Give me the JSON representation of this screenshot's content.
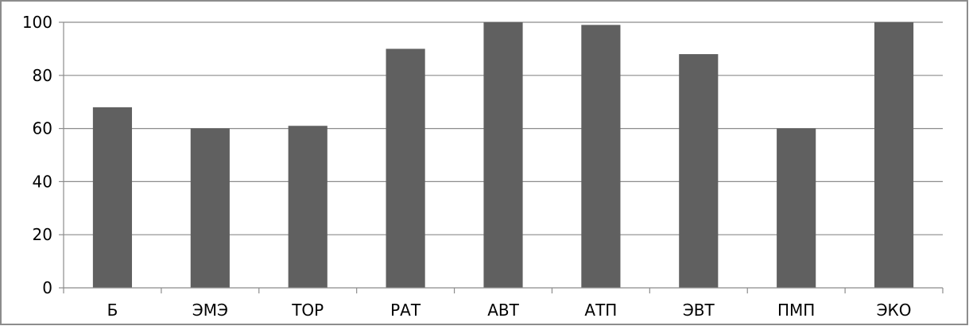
{
  "chart_data": {
    "type": "bar",
    "title": "",
    "xlabel": "",
    "ylabel": "",
    "categories": [
      "Б",
      "ЭМЭ",
      "ТОР",
      "РАТ",
      "АВТ",
      "АТП",
      "ЭВТ",
      "ПМП",
      "ЭКО"
    ],
    "values": [
      68,
      60,
      61,
      90,
      100,
      99,
      88,
      60,
      100
    ],
    "ylim": [
      0,
      100
    ],
    "yticks": [
      0,
      20,
      40,
      60,
      80,
      100
    ],
    "grid": true,
    "legend": "none",
    "colors": {
      "bar": "#606060",
      "grid": "#8c8c8c",
      "axis": "#8c8c8c",
      "border": "#8c8c8c"
    }
  }
}
